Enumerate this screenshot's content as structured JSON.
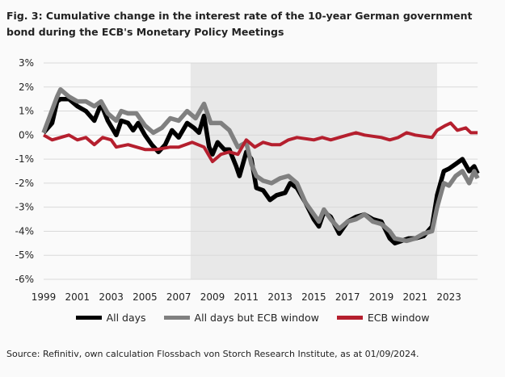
{
  "title": "Fig. 3: Cumulative change in the interest rate of the 10-year German government bond during the ECB's Monetary Policy Meetings",
  "source": "Source: Refinitiv, own calculation Flossbach von Storch Research Institute, as at 01/09/2024.",
  "chart_data": {
    "type": "line",
    "title": "Fig. 3: Cumulative change in the interest rate of the 10-year German government bond during the ECB's Monetary Policy Meetings",
    "xlabel": "",
    "ylabel": "",
    "xlim": [
      1999,
      2024.7
    ],
    "ylim": [
      -6,
      3
    ],
    "x_ticks": [
      "1999",
      "2001",
      "2003",
      "2005",
      "2007",
      "2009",
      "2011",
      "2013",
      "2015",
      "2017",
      "2019",
      "2021",
      "2023"
    ],
    "y_ticks": [
      "3%",
      "2%",
      "1%",
      "0%",
      "-1%",
      "-2%",
      "-3%",
      "-4%",
      "-5%",
      "-6%"
    ],
    "grid": true,
    "legend_position": "bottom",
    "shaded_period": [
      2007.7,
      2022.3
    ],
    "colors": {
      "shade": "#e8e8e8"
    },
    "series": [
      {
        "name": "All days",
        "color": "#000000",
        "x": [
          1999.0,
          1999.5,
          1999.8,
          2000.0,
          2000.5,
          2001.0,
          2001.5,
          2002.0,
          2002.4,
          2002.8,
          2003.3,
          2003.6,
          2004.0,
          2004.3,
          2004.6,
          2005.0,
          2005.4,
          2005.8,
          2006.2,
          2006.6,
          2007.0,
          2007.5,
          2007.9,
          2008.2,
          2008.5,
          2008.8,
          2009.0,
          2009.3,
          2009.7,
          2010.0,
          2010.4,
          2010.6,
          2011.0,
          2011.3,
          2011.6,
          2012.0,
          2012.4,
          2012.8,
          2013.3,
          2013.6,
          2014.0,
          2014.5,
          2015.0,
          2015.3,
          2015.6,
          2016.0,
          2016.5,
          2017.0,
          2017.5,
          2018.0,
          2018.5,
          2019.0,
          2019.5,
          2019.8,
          2020.2,
          2020.6,
          2021.0,
          2021.5,
          2022.0,
          2022.3,
          2022.7,
          2023.0,
          2023.4,
          2023.8,
          2024.2,
          2024.5,
          2024.7
        ],
        "y": [
          0.1,
          0.5,
          1.4,
          1.5,
          1.5,
          1.2,
          1.0,
          0.6,
          1.3,
          0.6,
          0.0,
          0.6,
          0.5,
          0.2,
          0.5,
          0.0,
          -0.4,
          -0.7,
          -0.4,
          0.2,
          -0.1,
          0.5,
          0.3,
          0.1,
          0.8,
          -0.5,
          -0.8,
          -0.3,
          -0.6,
          -0.6,
          -1.3,
          -1.7,
          -0.7,
          -1.0,
          -2.2,
          -2.3,
          -2.7,
          -2.5,
          -2.4,
          -2.0,
          -2.2,
          -2.8,
          -3.5,
          -3.8,
          -3.2,
          -3.4,
          -4.1,
          -3.6,
          -3.4,
          -3.3,
          -3.5,
          -3.6,
          -4.3,
          -4.5,
          -4.4,
          -4.3,
          -4.3,
          -4.2,
          -3.8,
          -2.5,
          -1.5,
          -1.4,
          -1.2,
          -1.0,
          -1.5,
          -1.3,
          -1.6
        ]
      },
      {
        "name": "All days but ECB window",
        "color": "#808080",
        "x": [
          1999.0,
          1999.8,
          2000.0,
          2000.5,
          2001.0,
          2001.5,
          2002.0,
          2002.4,
          2002.8,
          2003.3,
          2003.6,
          2004.0,
          2004.5,
          2005.0,
          2005.5,
          2006.0,
          2006.5,
          2007.0,
          2007.5,
          2008.0,
          2008.5,
          2008.9,
          2009.5,
          2010.0,
          2010.5,
          2011.0,
          2011.3,
          2011.6,
          2012.0,
          2012.5,
          2013.0,
          2013.5,
          2014.0,
          2014.5,
          2015.0,
          2015.3,
          2015.6,
          2016.0,
          2016.5,
          2017.0,
          2017.5,
          2018.0,
          2018.5,
          2019.0,
          2019.5,
          2019.8,
          2020.5,
          2021.0,
          2021.5,
          2022.0,
          2022.3,
          2022.7,
          2023.0,
          2023.4,
          2023.8,
          2024.2,
          2024.5,
          2024.7
        ],
        "y": [
          0.1,
          1.6,
          1.9,
          1.6,
          1.4,
          1.4,
          1.2,
          1.4,
          0.9,
          0.6,
          1.0,
          0.9,
          0.9,
          0.4,
          0.1,
          0.3,
          0.7,
          0.6,
          1.0,
          0.7,
          1.3,
          0.5,
          0.5,
          0.2,
          -0.5,
          -0.3,
          -1.2,
          -1.7,
          -1.9,
          -2.0,
          -1.8,
          -1.7,
          -2.0,
          -2.8,
          -3.3,
          -3.6,
          -3.1,
          -3.5,
          -3.9,
          -3.6,
          -3.5,
          -3.3,
          -3.6,
          -3.7,
          -4.0,
          -4.3,
          -4.4,
          -4.3,
          -4.1,
          -4.0,
          -3.0,
          -2.0,
          -2.1,
          -1.7,
          -1.5,
          -2.0,
          -1.5,
          -1.8
        ]
      },
      {
        "name": "ECB window",
        "color": "#b51f2e",
        "x": [
          1999.0,
          1999.5,
          2000.0,
          2000.5,
          2001.0,
          2001.5,
          2002.0,
          2002.5,
          2003.0,
          2003.3,
          2004.0,
          2005.0,
          2005.7,
          2006.5,
          2007.0,
          2007.8,
          2008.5,
          2009.0,
          2009.5,
          2010.0,
          2010.5,
          2011.0,
          2011.5,
          2012.0,
          2012.5,
          2013.0,
          2013.5,
          2014.0,
          2015.0,
          2015.5,
          2016.0,
          2017.0,
          2017.5,
          2018.0,
          2019.0,
          2019.5,
          2020.0,
          2020.5,
          2021.0,
          2022.0,
          2022.3,
          2022.8,
          2023.1,
          2023.5,
          2024.0,
          2024.3,
          2024.7
        ],
        "y": [
          0.0,
          -0.2,
          -0.1,
          0.0,
          -0.2,
          -0.1,
          -0.4,
          -0.1,
          -0.2,
          -0.5,
          -0.4,
          -0.6,
          -0.6,
          -0.5,
          -0.5,
          -0.3,
          -0.5,
          -1.1,
          -0.8,
          -0.7,
          -0.8,
          -0.2,
          -0.5,
          -0.3,
          -0.4,
          -0.4,
          -0.2,
          -0.1,
          -0.2,
          -0.1,
          -0.2,
          0.0,
          0.1,
          0.0,
          -0.1,
          -0.2,
          -0.1,
          0.1,
          0.0,
          -0.1,
          0.2,
          0.4,
          0.5,
          0.2,
          0.3,
          0.1,
          0.1
        ]
      }
    ]
  }
}
